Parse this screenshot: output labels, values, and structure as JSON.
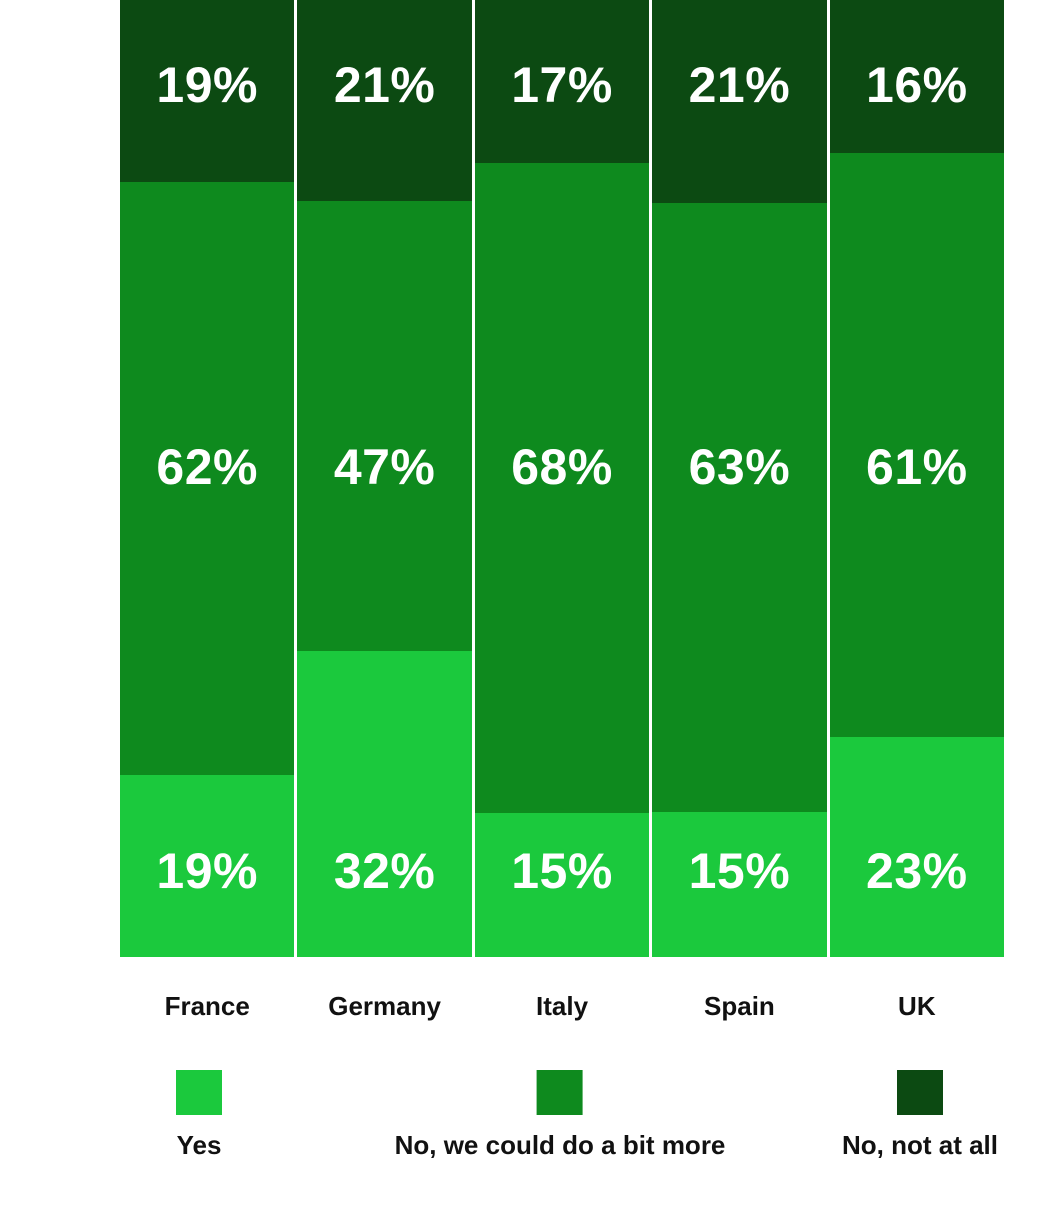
{
  "chart_data": {
    "type": "bar",
    "variant": "100-percent-stacked-column",
    "title": "",
    "xlabel": "",
    "ylabel": "",
    "grid": false,
    "legend_position": "bottom",
    "value_suffix": "%",
    "categories": [
      "France",
      "Germany",
      "Italy",
      "Spain",
      "UK"
    ],
    "series": [
      {
        "name": "Yes",
        "color": "#1bc93d",
        "values": [
          19,
          32,
          15,
          15,
          23
        ]
      },
      {
        "name": "No, we could do a bit more",
        "color": "#0e8a1e",
        "values": [
          62,
          47,
          68,
          63,
          61
        ]
      },
      {
        "name": "No, not at all",
        "color": "#0c4a12",
        "values": [
          19,
          21,
          17,
          21,
          16
        ]
      }
    ],
    "stack_order_top_to_bottom": [
      "No, not at all",
      "No, we could do a bit more",
      "Yes"
    ],
    "bar_value_label_color": "#ffffff",
    "category_label_color": "#111111"
  },
  "legend": {
    "items": [
      {
        "label": "Yes",
        "color": "#1bc93d"
      },
      {
        "label": "No, we could do a bit more",
        "color": "#0e8a1e"
      },
      {
        "label": "No, not at all",
        "color": "#0c4a12"
      }
    ]
  }
}
